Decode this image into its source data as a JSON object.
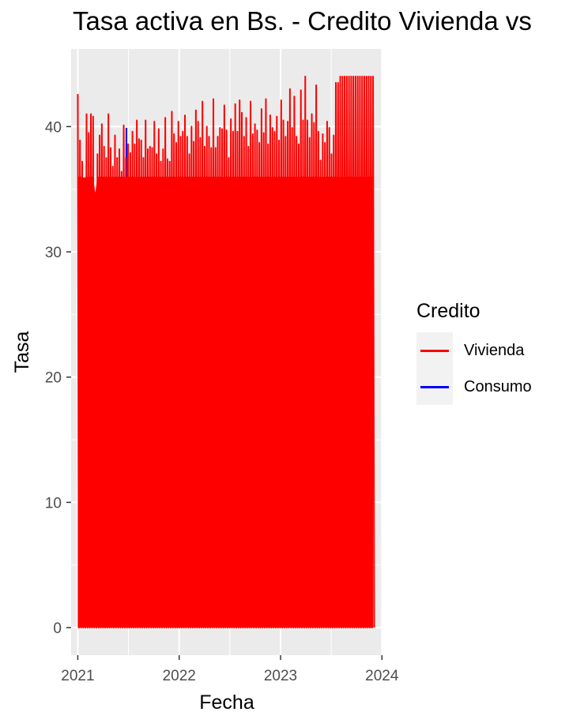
{
  "chart_data": {
    "type": "line",
    "title": "Tasa activa en Bs. - Credito Vivienda vs",
    "xlabel": "Fecha",
    "ylabel": "Tasa",
    "x_ticks": [
      "2021",
      "2022",
      "2023",
      "2024"
    ],
    "y_ticks": [
      0,
      10,
      20,
      30,
      40
    ],
    "xlim": [
      "2020-12-08",
      "2024-01-03"
    ],
    "ylim": [
      -2.2,
      46.2
    ],
    "grid": true,
    "legend": {
      "title": "Credito",
      "placement": "right"
    },
    "series": [
      {
        "name": "Vivienda",
        "color": "#ff0000",
        "peaks": [
          42.6,
          38.9,
          37.2,
          35.9,
          41.0,
          39.5,
          41.0,
          40.8,
          34.7,
          37.8,
          39.3,
          40.2,
          38.4,
          37.5,
          41.0,
          38.3,
          36.8,
          39.3,
          37.5,
          38.2,
          36.4,
          40.1,
          37.5,
          38.6,
          37.9,
          39.6,
          38.6,
          40.5,
          39.0,
          38.9,
          37.5,
          40.5,
          38.2,
          38.4,
          38.3,
          40.4,
          37.8,
          39.8,
          37.2,
          38.2,
          40.7,
          37.4,
          37.2,
          41.2,
          39.4,
          38.7,
          40.4,
          39.2,
          39.6,
          40.9,
          39.2,
          37.8,
          40.0,
          38.8,
          41.3,
          40.4,
          39.1,
          42.0,
          38.4,
          40.0,
          39.2,
          38.3,
          42.2,
          38.3,
          39.2,
          39.9,
          39.8,
          41.7,
          39.7,
          37.5,
          40.6,
          39.6,
          41.8,
          39.6,
          42.1,
          41.1,
          39.2,
          40.7,
          38.4,
          42.0,
          39.4,
          40.2,
          39.7,
          38.7,
          41.4,
          39.5,
          42.2,
          38.6,
          40.9,
          39.9,
          39.6,
          40.8,
          38.9,
          42.1,
          40.5,
          39.2,
          40.4,
          43.0,
          39.9,
          42.4,
          39.2,
          38.6,
          42.9,
          40.5,
          44.0,
          40.5,
          39.1,
          41.0,
          40.3,
          43.3,
          39.6,
          37.3,
          39.4,
          38.7,
          40.4,
          39.9,
          37.8,
          39.3,
          43.5,
          43.5,
          44.0,
          44.0,
          44.0,
          44.0,
          44.0,
          44.0,
          44.0,
          44.0,
          44.0,
          44.0,
          44.0,
          44.0,
          44.0,
          44.0,
          44.0,
          44.0
        ],
        "start": "2021-01-01",
        "end": "2023-11-30",
        "baseline": 0
      },
      {
        "name": "Consumo",
        "color": "#0000ff",
        "peaks": [
          39.9
        ],
        "dates": [
          "2021-06-25"
        ],
        "baseline": 0
      }
    ]
  }
}
